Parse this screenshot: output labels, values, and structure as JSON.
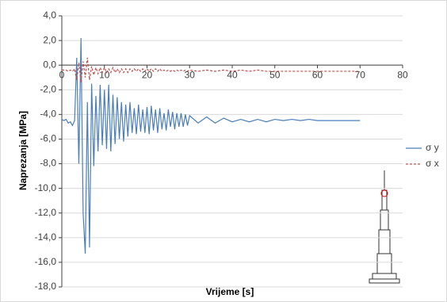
{
  "chart_data": {
    "type": "line",
    "x_label": "Vrijeme [s]",
    "y_label": "Naprezanja [MPa]",
    "x": [
      0,
      0.5,
      1,
      1.5,
      2,
      2.5,
      3,
      3.5,
      4,
      4.5,
      5,
      5.5,
      6,
      6.5,
      7,
      7.5,
      8,
      8.5,
      9,
      9.5,
      10,
      10.5,
      11,
      11.5,
      12,
      12.5,
      13,
      13.5,
      14,
      14.5,
      15,
      15.5,
      16,
      16.5,
      17,
      17.5,
      18,
      18.5,
      19,
      19.5,
      20,
      20.5,
      21,
      21.5,
      22,
      22.5,
      23,
      23.5,
      24,
      24.5,
      25,
      25.5,
      26,
      26.5,
      27,
      27.5,
      28,
      28.5,
      29,
      29.5,
      30,
      32,
      34,
      36,
      38,
      40,
      42,
      44,
      46,
      48,
      50,
      52,
      54,
      56,
      58,
      60,
      62,
      64,
      66,
      68,
      70
    ],
    "series": [
      {
        "name": "σ y",
        "color": "#4a7ebb",
        "line_style": "solid",
        "values": [
          -4.4,
          -4.5,
          -4.4,
          -4.7,
          -4.6,
          -4.9,
          -4.5,
          0.6,
          -8.0,
          2.2,
          -12.0,
          -15.3,
          -3.0,
          -14.8,
          -1.5,
          -8.2,
          -2.5,
          -7.0,
          -1.6,
          -6.5,
          -2.0,
          -6.8,
          -1.6,
          -7.0,
          -2.4,
          -6.4,
          -2.6,
          -6.0,
          -3.0,
          -6.2,
          -3.2,
          -5.8,
          -3.0,
          -5.5,
          -3.5,
          -5.6,
          -3.2,
          -5.4,
          -3.6,
          -5.5,
          -3.4,
          -5.6,
          -3.3,
          -5.3,
          -3.6,
          -5.5,
          -3.5,
          -5.2,
          -3.9,
          -5.3,
          -3.6,
          -5.0,
          -3.8,
          -5.2,
          -3.9,
          -5.0,
          -3.9,
          -5.0,
          -4.0,
          -4.9,
          -4.1,
          -4.7,
          -4.2,
          -4.7,
          -4.3,
          -4.6,
          -4.4,
          -4.6,
          -4.4,
          -4.6,
          -4.4,
          -4.5,
          -4.4,
          -4.5,
          -4.4,
          -4.5,
          -4.5,
          -4.5,
          -4.5,
          -4.5,
          -4.5
        ]
      },
      {
        "name": "σ x",
        "color": "#c0504d",
        "line_style": "dashed",
        "values": [
          -0.4,
          -0.4,
          -0.4,
          -0.5,
          -0.4,
          -0.5,
          -0.3,
          -1.2,
          0.2,
          -1.4,
          0.3,
          -1.0,
          0.6,
          -1.2,
          -0.1,
          -0.8,
          -0.2,
          -0.7,
          -0.2,
          -0.6,
          -0.2,
          -0.6,
          -0.3,
          -0.6,
          -0.2,
          -0.6,
          -0.3,
          -0.6,
          -0.3,
          -0.6,
          -0.3,
          -0.6,
          -0.3,
          -0.5,
          -0.3,
          -0.5,
          -0.3,
          -0.5,
          -0.3,
          -0.5,
          -0.3,
          -0.5,
          -0.3,
          -0.5,
          -0.3,
          -0.5,
          -0.3,
          -0.5,
          -0.4,
          -0.5,
          -0.4,
          -0.5,
          -0.4,
          -0.5,
          -0.4,
          -0.5,
          -0.4,
          -0.5,
          -0.4,
          -0.5,
          -0.4,
          -0.5,
          -0.4,
          -0.5,
          -0.4,
          -0.5,
          -0.4,
          -0.5,
          -0.4,
          -0.5,
          -0.5,
          -0.5,
          -0.5,
          -0.5,
          -0.5,
          -0.5,
          -0.5,
          -0.5,
          -0.5,
          -0.5,
          -0.5
        ]
      }
    ],
    "xlim": [
      0,
      80
    ],
    "xticks": [
      0,
      10,
      20,
      30,
      40,
      50,
      60,
      70,
      80
    ],
    "ylim": [
      -18,
      4
    ],
    "yticks": [
      {
        "value": 4,
        "label": "4,0"
      },
      {
        "value": 2,
        "label": "2,0"
      },
      {
        "value": 0,
        "label": "0,0"
      },
      {
        "value": -2,
        "label": "-2,0"
      },
      {
        "value": -4,
        "label": "-4,0"
      },
      {
        "value": -6,
        "label": "-6,0"
      },
      {
        "value": -8,
        "label": "-8,0"
      },
      {
        "value": -10,
        "label": "-10,0"
      },
      {
        "value": -12,
        "label": "-12,0"
      },
      {
        "value": -14,
        "label": "-14,0"
      },
      {
        "value": -16,
        "label": "-16,0"
      },
      {
        "value": -18,
        "label": "-18,0"
      }
    ],
    "grid": true,
    "legend": "right"
  }
}
